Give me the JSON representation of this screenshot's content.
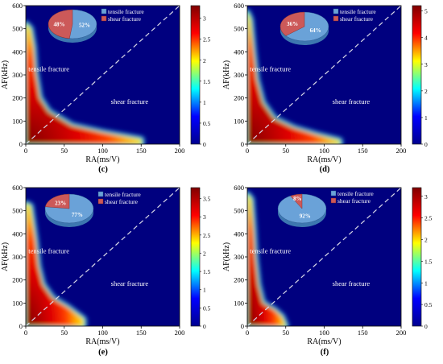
{
  "colors": {
    "background": "#00007f",
    "diagonal": "#d8d8e8",
    "pie_tensile": "#6aa2d8",
    "pie_tensile_side": "#3d77b0",
    "pie_shear": "#cc5959",
    "pie_shear_side": "#963030",
    "jet_colormap": [
      "#00008f",
      "#0000ff",
      "#00ffff",
      "#ffff00",
      "#ff0000",
      "#800000"
    ]
  },
  "chart_data": [
    {
      "type": "heatmap",
      "panel_label": "(c)",
      "xlabel": "RA(ms/V)",
      "ylabel": "AF(kHz)",
      "xlim": [
        0,
        200
      ],
      "ylim": [
        0,
        600
      ],
      "xticks": [
        "0",
        "50",
        "100",
        "150",
        "200"
      ],
      "yticks": [
        "0",
        "100",
        "200",
        "300",
        "400",
        "500",
        "600"
      ],
      "colorbar_range": [
        0,
        3.3
      ],
      "colorbar_ticks": [
        "0",
        "0.5",
        "1",
        "1.5",
        "2",
        "2.5",
        "3"
      ],
      "divider_line": {
        "from": [
          0,
          0
        ],
        "to": [
          200,
          600
        ],
        "style": "dashed"
      },
      "region_labels": [
        "tensile fracture",
        "shear fracture"
      ],
      "density_boundary": [
        [
          0,
          520
        ],
        [
          6,
          500
        ],
        [
          10,
          420
        ],
        [
          12,
          320
        ],
        [
          18,
          200
        ],
        [
          30,
          140
        ],
        [
          60,
          80
        ],
        [
          100,
          50
        ],
        [
          150,
          20
        ],
        [
          150,
          0
        ]
      ],
      "pie": {
        "legend": [
          "tensile fracture",
          "shear fracture"
        ],
        "labels": [
          "52%",
          "48%"
        ],
        "values": [
          52,
          48
        ]
      }
    },
    {
      "type": "heatmap",
      "panel_label": "(d)",
      "xlabel": "RA(ms/V)",
      "ylabel": "AF(kHz)",
      "xlim": [
        0,
        200
      ],
      "ylim": [
        0,
        600
      ],
      "xticks": [
        "0",
        "50",
        "100",
        "150",
        "200"
      ],
      "yticks": [
        "0",
        "100",
        "200",
        "300",
        "400",
        "500",
        "600"
      ],
      "colorbar_range": [
        0,
        5.2
      ],
      "colorbar_ticks": [
        "0",
        "1",
        "2",
        "3",
        "4",
        "5"
      ],
      "divider_line": {
        "from": [
          0,
          0
        ],
        "to": [
          200,
          600
        ],
        "style": "dashed"
      },
      "region_labels": [
        "tensile fracture",
        "shear fracture"
      ],
      "density_boundary": [
        [
          0,
          570
        ],
        [
          4,
          540
        ],
        [
          8,
          400
        ],
        [
          12,
          280
        ],
        [
          20,
          180
        ],
        [
          35,
          110
        ],
        [
          60,
          70
        ],
        [
          90,
          40
        ],
        [
          120,
          15
        ],
        [
          120,
          0
        ]
      ],
      "pie": {
        "legend": [
          "tensile fracture",
          "shear fracture"
        ],
        "labels": [
          "64%",
          "36%"
        ],
        "values": [
          64,
          36
        ]
      }
    },
    {
      "type": "heatmap",
      "panel_label": "(e)",
      "xlabel": "RA(ms/V)",
      "ylabel": "AF(kHz)",
      "xlim": [
        0,
        200
      ],
      "ylim": [
        0,
        600
      ],
      "xticks": [
        "0",
        "50",
        "100",
        "150",
        "200"
      ],
      "yticks": [
        "0",
        "100",
        "200",
        "300",
        "400",
        "500",
        "600"
      ],
      "colorbar_range": [
        0,
        3.8
      ],
      "colorbar_ticks": [
        "0",
        "0.5",
        "1",
        "1.5",
        "2",
        "2.5",
        "3",
        "3.5"
      ],
      "divider_line": {
        "from": [
          0,
          0
        ],
        "to": [
          200,
          600
        ],
        "style": "dashed"
      },
      "region_labels": [
        "tensile fracture",
        "shear fracture"
      ],
      "density_boundary": [
        [
          0,
          530
        ],
        [
          6,
          520
        ],
        [
          12,
          380
        ],
        [
          16,
          260
        ],
        [
          22,
          180
        ],
        [
          35,
          120
        ],
        [
          55,
          80
        ],
        [
          75,
          30
        ],
        [
          75,
          0
        ]
      ],
      "pie": {
        "legend": [
          "tensile fracture",
          "shear fracture"
        ],
        "labels": [
          "77%",
          "23%"
        ],
        "values": [
          77,
          23
        ]
      }
    },
    {
      "type": "heatmap",
      "panel_label": "(f)",
      "xlabel": "RA(ms/V)",
      "ylabel": "AF(kHz)",
      "xlim": [
        0,
        200
      ],
      "ylim": [
        0,
        600
      ],
      "xticks": [
        "0",
        "50",
        "100",
        "150",
        "200"
      ],
      "yticks": [
        "0",
        "100",
        "200",
        "300",
        "400",
        "500",
        "600"
      ],
      "colorbar_range": [
        0,
        3.2
      ],
      "colorbar_ticks": [
        "0",
        "0.5",
        "1",
        "1.5",
        "2",
        "2.5",
        "3"
      ],
      "divider_line": {
        "from": [
          0,
          0
        ],
        "to": [
          200,
          600
        ],
        "style": "dashed"
      },
      "region_labels": [
        "tensile fracture",
        "shear fracture"
      ],
      "density_boundary": [
        [
          0,
          570
        ],
        [
          5,
          550
        ],
        [
          8,
          420
        ],
        [
          10,
          300
        ],
        [
          14,
          180
        ],
        [
          20,
          100
        ],
        [
          35,
          70
        ],
        [
          45,
          40
        ],
        [
          50,
          0
        ]
      ],
      "pie": {
        "legend": [
          "tensile fracture",
          "shear fracture"
        ],
        "labels": [
          "92%",
          "8%"
        ],
        "values": [
          92,
          8
        ]
      }
    }
  ]
}
